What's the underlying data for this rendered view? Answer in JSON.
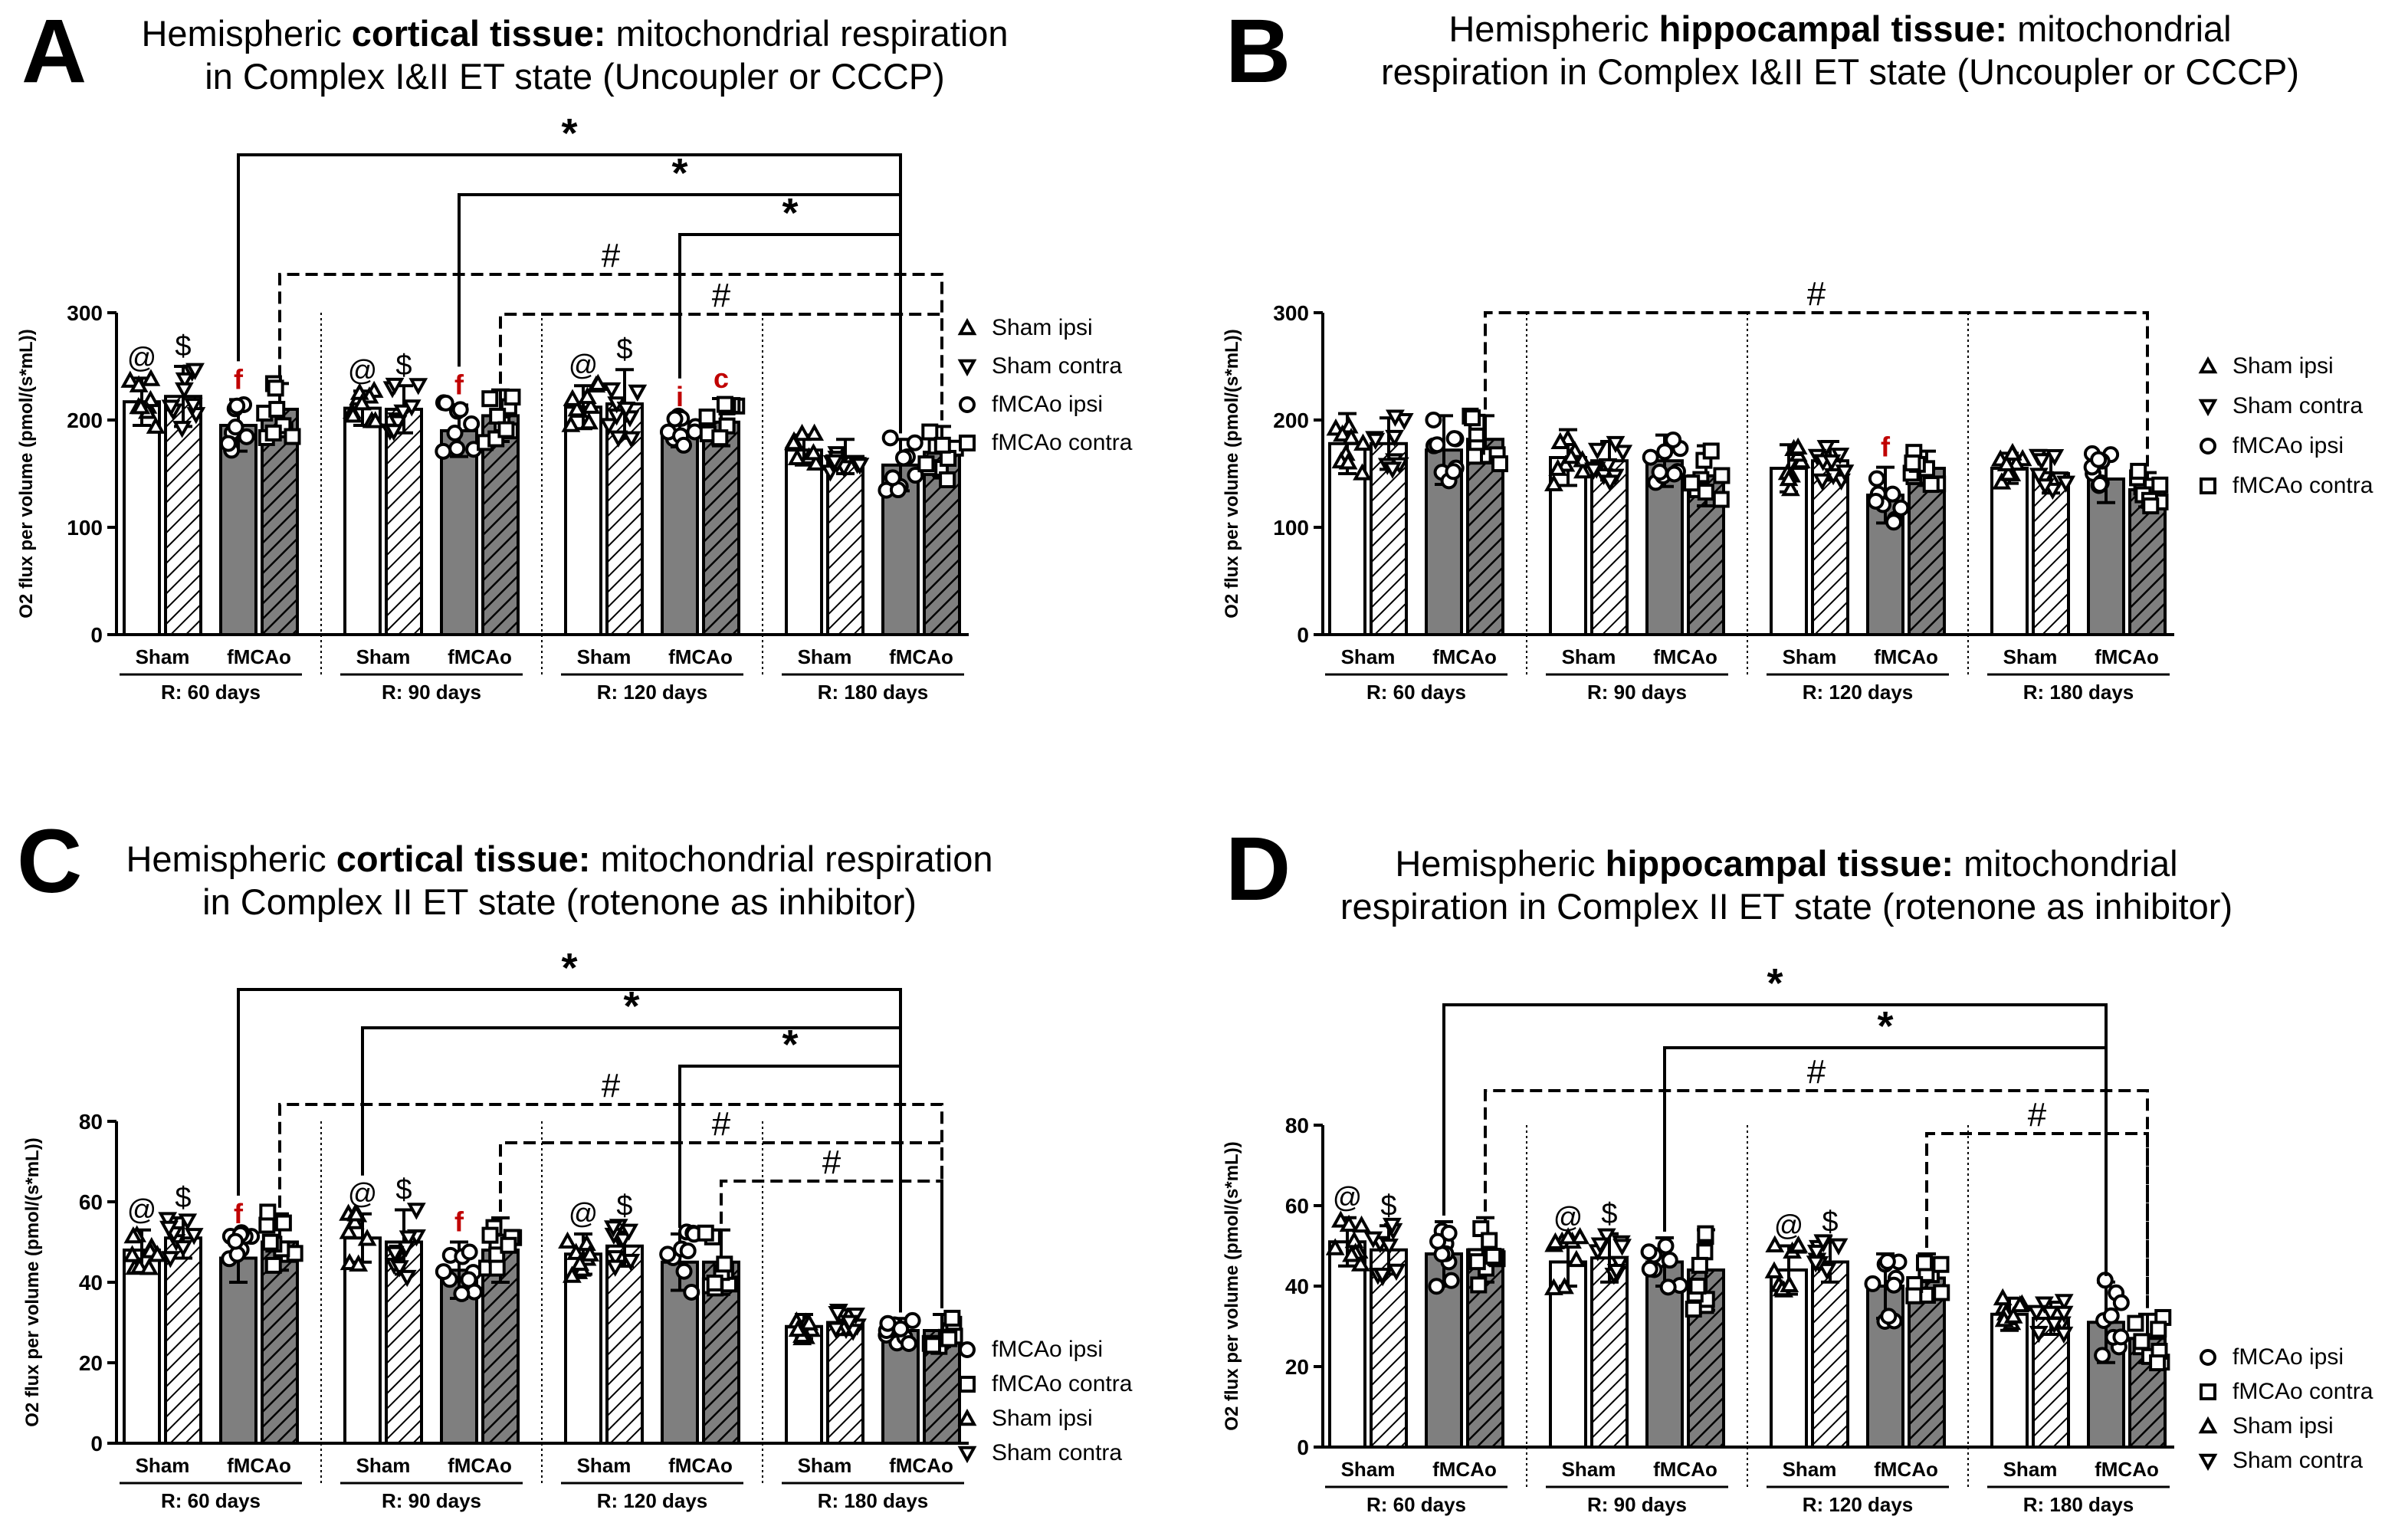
{
  "colors": {
    "fmcao_fill": "#7f7f7f",
    "sham_fill": "#ffffff",
    "annotation_red": "#c00000",
    "ink": "#000000"
  },
  "legend_icons": [
    "triangle-up",
    "triangle-down",
    "circle",
    "square"
  ],
  "chart_data": [
    {
      "type": "bar",
      "letter": "A",
      "title_pre": "Hemispheric ",
      "title_bold": "cortical tissue:",
      "title_post": " mitochondrial respiration",
      "title_line2": "in Complex I&II ET state (Uncoupler or CCCP)",
      "ylabel": "O2 flux per volume (pmol/(s*mL))",
      "ylim": [
        0,
        300
      ],
      "yticks": [
        0,
        100,
        200,
        300
      ],
      "groups": [
        "R: 60 days",
        "R: 90 days",
        "R: 120 days",
        "R: 180 days"
      ],
      "subgroups": [
        "Sham",
        "fMCAo"
      ],
      "legend": [
        "Sham ipsi",
        "Sham contra",
        "fMCAo ipsi",
        "fMCAo contra"
      ],
      "series_order": [
        "Sham ipsi",
        "Sham contra",
        "fMCAo ipsi",
        "fMCAo contra"
      ],
      "values": [
        [
          217,
          222,
          195,
          210
        ],
        [
          211,
          210,
          190,
          204
        ],
        [
          212,
          215,
          189,
          198
        ],
        [
          172,
          166,
          158,
          170
        ]
      ],
      "errors": [
        [
          22,
          28,
          24,
          24
        ],
        [
          16,
          22,
          24,
          24
        ],
        [
          20,
          32,
          14,
          22
        ],
        [
          14,
          16,
          24,
          24
        ]
      ],
      "bar_marks": [
        [
          "@",
          "$",
          "f",
          ""
        ],
        [
          "@",
          "$",
          "f",
          ""
        ],
        [
          "@",
          "$",
          "i",
          "c"
        ],
        [
          "",
          "",
          "",
          ""
        ]
      ],
      "brackets": [
        {
          "from": 2,
          "to": 14,
          "label": "*",
          "dashed": false,
          "level": 0
        },
        {
          "from": 6,
          "to": 14,
          "label": "*",
          "dashed": false,
          "level": 1
        },
        {
          "from": 10,
          "to": 14,
          "label": "*",
          "dashed": false,
          "level": 2
        },
        {
          "from": 3,
          "to": 15,
          "label": "#",
          "dashed": true,
          "level": 3
        },
        {
          "from": 7,
          "to": 15,
          "label": "#",
          "dashed": true,
          "level": 4
        }
      ]
    },
    {
      "type": "bar",
      "letter": "B",
      "title_pre": "Hemispheric ",
      "title_bold": "hippocampal tissue:",
      "title_post": " mitochondrial",
      "title_line2": "respiration in Complex I&II ET state (Uncoupler or CCCP)",
      "ylabel": "O2 flux per volume (pmol/(s*mL))",
      "ylim": [
        0,
        300
      ],
      "yticks": [
        0,
        100,
        200,
        300
      ],
      "groups": [
        "R: 60 days",
        "R: 90 days",
        "R: 120 days",
        "R: 180 days"
      ],
      "subgroups": [
        "Sham",
        "fMCAo"
      ],
      "legend": [
        "Sham ipsi",
        "Sham contra",
        "fMCAo ipsi",
        "fMCAo contra"
      ],
      "series_order": [
        "Sham ipsi",
        "Sham contra",
        "fMCAo ipsi",
        "fMCAo contra"
      ],
      "values": [
        [
          178,
          178,
          172,
          182
        ],
        [
          165,
          162,
          162,
          148
        ],
        [
          155,
          162,
          130,
          155
        ],
        [
          155,
          150,
          145,
          135
        ]
      ],
      "errors": [
        [
          28,
          24,
          32,
          22
        ],
        [
          26,
          18,
          24,
          28
        ],
        [
          22,
          18,
          26,
          16
        ],
        [
          14,
          18,
          22,
          16
        ]
      ],
      "bar_marks": [
        [
          "",
          "",
          "",
          ""
        ],
        [
          "",
          "",
          "",
          ""
        ],
        [
          "",
          "",
          "f",
          ""
        ],
        [
          "",
          "",
          "",
          ""
        ]
      ],
      "brackets": [
        {
          "from": 3,
          "to": 15,
          "label": "#",
          "dashed": true,
          "level": 0
        }
      ]
    },
    {
      "type": "bar",
      "letter": "C",
      "title_pre": "Hemispheric ",
      "title_bold": "cortical tissue:",
      "title_post": " mitochondrial respiration",
      "title_line2": "in Complex II ET state (rotenone as inhibitor)",
      "ylabel": "O2 flux per volume (pmol/(s*mL))",
      "ylim": [
        0,
        80
      ],
      "yticks": [
        0,
        20,
        40,
        60,
        80
      ],
      "groups": [
        "R: 60 days",
        "R: 90 days",
        "R: 120 days",
        "R: 180 days"
      ],
      "subgroups": [
        "Sham",
        "fMCAo"
      ],
      "legend": [
        "fMCAo ipsi",
        "fMCAo contra",
        "Sham ipsi",
        "Sham contra"
      ],
      "series_order": [
        "Sham ipsi",
        "Sham contra",
        "fMCAo ipsi",
        "fMCAo contra"
      ],
      "values": [
        [
          48,
          51,
          46,
          50
        ],
        [
          51,
          50,
          43,
          48
        ],
        [
          47,
          49,
          45,
          45
        ],
        [
          29,
          30,
          28,
          28
        ]
      ],
      "errors": [
        [
          5,
          5,
          6,
          7
        ],
        [
          6,
          8,
          7,
          8
        ],
        [
          5,
          5,
          7,
          8
        ],
        [
          3,
          3,
          3,
          4
        ]
      ],
      "bar_marks": [
        [
          "@",
          "$",
          "f",
          ""
        ],
        [
          "@",
          "$",
          "f",
          ""
        ],
        [
          "@",
          "$",
          "",
          ""
        ],
        [
          "",
          "",
          "",
          ""
        ]
      ],
      "brackets": [
        {
          "from": 2,
          "to": 14,
          "label": "*",
          "dashed": false,
          "level": 0
        },
        {
          "from": 4,
          "to": 14,
          "label": "*",
          "dashed": false,
          "level": 1
        },
        {
          "from": 10,
          "to": 14,
          "label": "*",
          "dashed": false,
          "level": 2
        },
        {
          "from": 3,
          "to": 15,
          "label": "#",
          "dashed": true,
          "level": 3
        },
        {
          "from": 7,
          "to": 15,
          "label": "#",
          "dashed": true,
          "level": 4
        },
        {
          "from": 11,
          "to": 15,
          "label": "#",
          "dashed": true,
          "level": 5
        }
      ]
    },
    {
      "type": "bar",
      "letter": "D",
      "title_pre": "Hemispheric ",
      "title_bold": "hippocampal tissue:",
      "title_post": " mitochondrial",
      "title_line2": "respiration in Complex II ET state (rotenone as inhibitor)",
      "ylabel": "O2 flux per volume (pmol/(s*mL))",
      "ylim": [
        0,
        80
      ],
      "yticks": [
        0,
        20,
        40,
        60,
        80
      ],
      "groups": [
        "R: 60 days",
        "R: 90 days",
        "R: 120 days",
        "R: 180 days"
      ],
      "subgroups": [
        "Sham",
        "fMCAo"
      ],
      "legend": [
        "fMCAo ipsi",
        "fMCAo contra",
        "Sham ipsi",
        "Sham contra"
      ],
      "series_order": [
        "Sham ipsi",
        "Sham contra",
        "fMCAo ipsi",
        "fMCAo contra"
      ],
      "values": [
        [
          51,
          49,
          48,
          49
        ],
        [
          46,
          47,
          46,
          44
        ],
        [
          44,
          46,
          40,
          42
        ],
        [
          33,
          32,
          31,
          27
        ]
      ],
      "errors": [
        [
          6,
          6,
          8,
          8
        ],
        [
          6,
          6,
          6,
          10
        ],
        [
          6,
          5,
          8,
          6
        ],
        [
          4,
          4,
          10,
          6
        ]
      ],
      "bar_marks": [
        [
          "@",
          "$",
          "",
          ""
        ],
        [
          "@",
          "$",
          "",
          ""
        ],
        [
          "@",
          "$",
          "",
          ""
        ],
        [
          "",
          "",
          "",
          ""
        ]
      ],
      "brackets": [
        {
          "from": 2,
          "to": 14,
          "label": "*",
          "dashed": false,
          "level": 0
        },
        {
          "from": 6,
          "to": 14,
          "label": "*",
          "dashed": false,
          "level": 1
        },
        {
          "from": 3,
          "to": 15,
          "label": "#",
          "dashed": true,
          "level": 2
        },
        {
          "from": 11,
          "to": 15,
          "label": "#",
          "dashed": true,
          "level": 3
        }
      ]
    }
  ]
}
